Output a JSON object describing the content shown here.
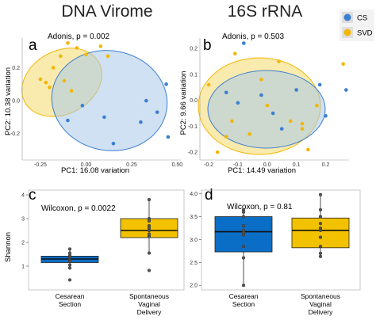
{
  "colors": {
    "cs": "#3b7fd1",
    "svd": "#f2b705",
    "cs_fill": "#aac8ea",
    "svd_fill": "#f4d86a",
    "cs_box": "#0a6ec7",
    "svd_box": "#f2c200"
  },
  "legend": {
    "items": [
      {
        "label": "CS",
        "color": "#3b7fd1"
      },
      {
        "label": "SVD",
        "color": "#f2b705"
      }
    ]
  },
  "chart_data": [
    {
      "panel": "a",
      "title": "DNA Virome",
      "type": "scatter",
      "annotation": "Adonis, p = 0.002",
      "xlabel": "PC1: 16.08  variation",
      "ylabel": "PC2: 10.38  variation",
      "xlim": [
        -0.35,
        0.52
      ],
      "ylim": [
        -0.36,
        0.38
      ],
      "xticks": [
        "-0.25",
        "0.00",
        "0.25",
        "0.50"
      ],
      "xtick_values": [
        -0.25,
        0.0,
        0.25,
        0.5
      ],
      "yticks": [
        "-0.2",
        "0.0",
        "0.2"
      ],
      "ytick_values": [
        -0.2,
        0.0,
        0.2
      ],
      "series": [
        {
          "name": "CS",
          "points": [
            [
              -0.02,
              -0.03
            ],
            [
              0.1,
              -0.1
            ],
            [
              0.3,
              -0.13
            ],
            [
              0.33,
              0.0
            ],
            [
              0.44,
              0.1
            ],
            [
              0.39,
              -0.07
            ],
            [
              0.15,
              -0.26
            ],
            [
              -0.1,
              -0.12
            ],
            [
              0.45,
              -0.22
            ]
          ]
        },
        {
          "name": "SVD",
          "points": [
            [
              -0.18,
              0.2
            ],
            [
              -0.2,
              0.08
            ],
            [
              -0.12,
              0.12
            ],
            [
              -0.08,
              0.06
            ],
            [
              -0.05,
              0.32
            ],
            [
              -0.14,
              0.27
            ],
            [
              0.0,
              0.28
            ],
            [
              0.08,
              0.33
            ],
            [
              0.12,
              0.27
            ],
            [
              -0.22,
              0.11
            ],
            [
              -0.1,
              0.35
            ],
            [
              -0.25,
              0.13
            ]
          ]
        }
      ]
    },
    {
      "panel": "b",
      "title": "16S rRNA",
      "type": "scatter",
      "annotation": "Adonis, p = 0.503",
      "xlabel": "PC1: 14.49  variation",
      "ylabel": "PC2: 9.66  variation",
      "xlim": [
        -0.23,
        0.28
      ],
      "ylim": [
        -0.23,
        0.24
      ],
      "xticks": [
        "-0.2",
        "-0.1",
        "0.0",
        "0.1",
        "0.2"
      ],
      "xtick_values": [
        -0.2,
        -0.1,
        0.0,
        0.1,
        0.2
      ],
      "yticks": [
        "-0.2",
        "-0.1",
        "0.0",
        "0.1",
        "0.2"
      ],
      "ytick_values": [
        -0.2,
        -0.1,
        0.0,
        0.1,
        0.2
      ],
      "series": [
        {
          "name": "CS",
          "points": [
            [
              -0.14,
              0.03
            ],
            [
              -0.1,
              -0.01
            ],
            [
              -0.02,
              0.02
            ],
            [
              0.02,
              -0.05
            ],
            [
              0.05,
              -0.11
            ],
            [
              0.18,
              0.06
            ],
            [
              0.27,
              0.04
            ],
            [
              0.2,
              -0.06
            ],
            [
              -0.08,
              0.22
            ],
            [
              0.1,
              0.04
            ]
          ]
        },
        {
          "name": "SVD",
          "points": [
            [
              -0.2,
              0.06
            ],
            [
              -0.12,
              -0.08
            ],
            [
              -0.02,
              0.08
            ],
            [
              0.0,
              -0.02
            ],
            [
              0.08,
              -0.08
            ],
            [
              0.12,
              -0.09
            ],
            [
              0.17,
              -0.02
            ],
            [
              0.12,
              -0.11
            ],
            [
              -0.11,
              0.18
            ],
            [
              -0.06,
              -0.13
            ],
            [
              0.26,
              0.14
            ],
            [
              -0.14,
              -0.14
            ],
            [
              -0.17,
              -0.2
            ],
            [
              0.14,
              -0.19
            ],
            [
              0.04,
              0.15
            ]
          ]
        }
      ]
    },
    {
      "panel": "c",
      "type": "boxplot",
      "annotation": "Wilcoxon, p = 0.0022",
      "ylabel": "Shannon",
      "ylim": [
        0,
        4.2
      ],
      "yticks": [
        "1",
        "2",
        "3",
        "4"
      ],
      "ytick_values": [
        1,
        2,
        3,
        4
      ],
      "categories": [
        "Cesarean\nSection",
        "Spontaneous\nVaginal\nDelivery"
      ],
      "boxes": [
        {
          "name": "CS",
          "q1": 1.15,
          "median": 1.3,
          "q3": 1.42,
          "whisker_low": 0.88,
          "whisker_high": 1.72,
          "points": [
            0.42,
            0.92,
            1.05,
            1.2,
            1.28,
            1.33,
            1.38,
            1.45,
            1.55,
            1.72
          ]
        },
        {
          "name": "SVD",
          "q1": 2.2,
          "median": 2.5,
          "q3": 3.0,
          "whisker_low": 1.55,
          "whisker_high": 3.8,
          "points": [
            0.82,
            1.55,
            2.25,
            2.35,
            2.5,
            2.6,
            2.7,
            2.9,
            3.0,
            3.8
          ]
        }
      ]
    },
    {
      "panel": "d",
      "type": "boxplot",
      "annotation": "Wilcoxon, p = 0.81",
      "ylabel": "",
      "ylim": [
        1.9,
        4.08
      ],
      "yticks": [
        "2.0",
        "2.5",
        "3.0",
        "3.5",
        "4.0"
      ],
      "ytick_values": [
        2.0,
        2.5,
        3.0,
        3.5,
        4.0
      ],
      "categories": [
        "Cesarean\nSection",
        "Spontaneous\nVaginal\nDelivery"
      ],
      "boxes": [
        {
          "name": "CS",
          "q1": 2.73,
          "median": 3.17,
          "q3": 3.5,
          "whisker_low": 2.0,
          "whisker_high": 3.65,
          "points": [
            2.0,
            2.6,
            2.85,
            3.1,
            3.15,
            3.2,
            3.3,
            3.5,
            3.6,
            3.65
          ]
        },
        {
          "name": "SVD",
          "q1": 2.82,
          "median": 3.2,
          "q3": 3.47,
          "whisker_low": 2.63,
          "whisker_high": 3.98,
          "points": [
            2.63,
            2.7,
            2.85,
            3.05,
            3.2,
            3.25,
            3.35,
            3.5,
            3.65,
            3.98
          ]
        }
      ]
    }
  ]
}
